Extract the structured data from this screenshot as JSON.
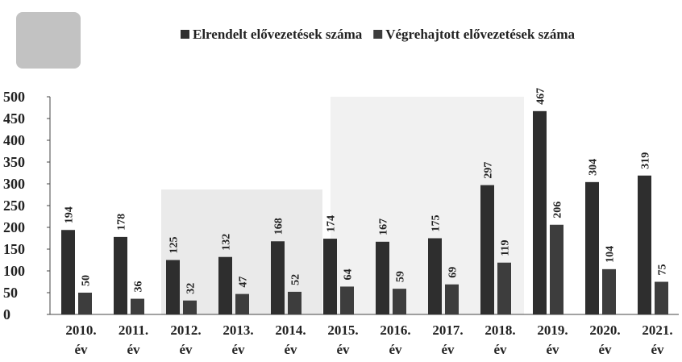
{
  "chart_data": {
    "type": "bar",
    "categories": [
      "2010. év",
      "2011. év",
      "2012. év",
      "2013. év",
      "2014. év",
      "2015. év",
      "2016. év",
      "2017. év",
      "2018. év",
      "2019. év",
      "2020. év",
      "2021. év"
    ],
    "series": [
      {
        "name": "Elrendelt elővezetések száma",
        "color": "#2e2e2e",
        "values": [
          194,
          178,
          125,
          132,
          168,
          174,
          167,
          175,
          297,
          467,
          304,
          319
        ]
      },
      {
        "name": "Végrehajtott elővezetések száma",
        "color": "#3d3d3d",
        "values": [
          50,
          36,
          32,
          47,
          52,
          64,
          59,
          69,
          119,
          206,
          104,
          75
        ]
      }
    ],
    "ylim": [
      0,
      500
    ],
    "yticks": [
      0,
      50,
      100,
      150,
      200,
      250,
      300,
      350,
      400,
      450,
      500
    ],
    "legend": "top-right"
  }
}
